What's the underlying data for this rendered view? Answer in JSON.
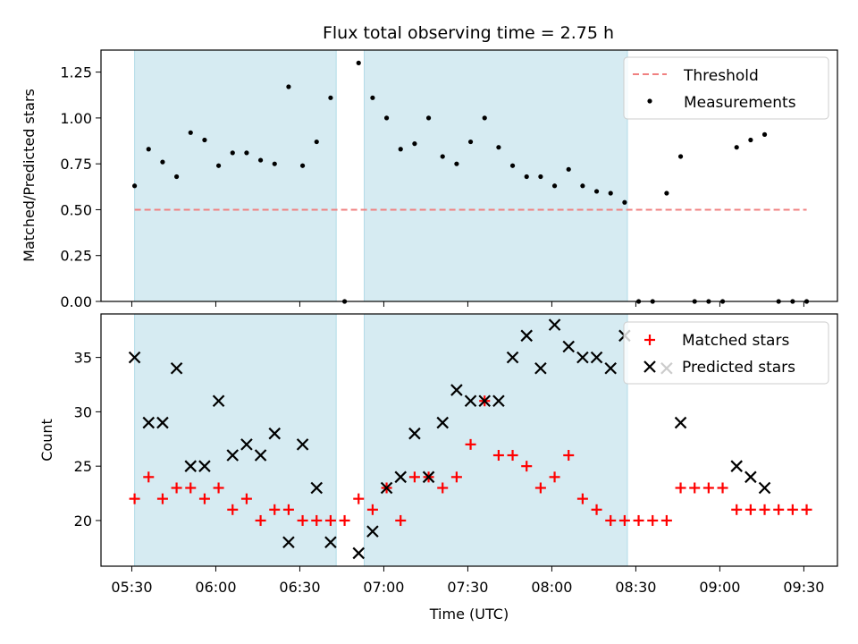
{
  "figure": {
    "title": "Flux total observing time = 2.75 h"
  },
  "chart_data": [
    {
      "type": "scatter",
      "panel": "top",
      "ylabel": "Matched/Predicted stars",
      "ylim": [
        0,
        1.37
      ],
      "yticks": [
        0.0,
        0.25,
        0.5,
        0.75,
        1.0,
        1.25
      ],
      "ytick_labels": [
        "0.00",
        "0.25",
        "0.50",
        "0.75",
        "1.00",
        "1.25"
      ],
      "grid": false,
      "legend": "top-right",
      "threshold": {
        "name": "Threshold",
        "value": 0.5,
        "x_start": "05:31",
        "x_end": "09:31",
        "color": "#f08080"
      },
      "series": [
        {
          "name": "Measurements",
          "color": "#000000",
          "x": [
            "05:31",
            "05:36",
            "05:41",
            "05:46",
            "05:51",
            "05:56",
            "06:01",
            "06:06",
            "06:11",
            "06:16",
            "06:21",
            "06:26",
            "06:31",
            "06:36",
            "06:41",
            "06:46",
            "06:51",
            "06:56",
            "07:01",
            "07:06",
            "07:11",
            "07:16",
            "07:21",
            "07:26",
            "07:31",
            "07:36",
            "07:41",
            "07:46",
            "07:51",
            "07:56",
            "08:01",
            "08:06",
            "08:11",
            "08:16",
            "08:21",
            "08:26",
            "08:31",
            "08:36",
            "08:41",
            "08:46",
            "08:51",
            "08:56",
            "09:01",
            "09:06",
            "09:11",
            "09:16",
            "09:21",
            "09:26",
            "09:31"
          ],
          "y": [
            0.63,
            0.83,
            0.76,
            0.68,
            0.92,
            0.88,
            0.74,
            0.81,
            0.81,
            0.77,
            0.75,
            1.17,
            0.74,
            0.87,
            1.11,
            0.0,
            1.3,
            1.11,
            1.0,
            0.83,
            0.86,
            1.0,
            0.79,
            0.75,
            0.87,
            1.0,
            0.84,
            0.74,
            0.68,
            0.68,
            0.63,
            0.72,
            0.63,
            0.6,
            0.59,
            0.54,
            0.0,
            0.0,
            0.59,
            0.79,
            0.0,
            0.0,
            0.0,
            0.84,
            0.88,
            0.91,
            0.0,
            0.0,
            0.0
          ]
        }
      ]
    },
    {
      "type": "scatter",
      "panel": "bottom",
      "xlabel": "Time (UTC)",
      "ylabel": "Count",
      "xlim": [
        "05:19",
        "09:42"
      ],
      "xticks": [
        "05:30",
        "06:00",
        "06:30",
        "07:00",
        "07:30",
        "08:00",
        "08:30",
        "09:00",
        "09:30"
      ],
      "ylim": [
        15.8,
        39
      ],
      "yticks": [
        20,
        25,
        30,
        35
      ],
      "ytick_labels": [
        "20",
        "25",
        "30",
        "35"
      ],
      "grid": false,
      "legend": "top-right",
      "series": [
        {
          "name": "Matched stars",
          "marker": "plus",
          "color": "#ff0000",
          "x": [
            "05:31",
            "05:36",
            "05:41",
            "05:46",
            "05:51",
            "05:56",
            "06:01",
            "06:06",
            "06:11",
            "06:16",
            "06:21",
            "06:26",
            "06:31",
            "06:36",
            "06:41",
            "06:46",
            "06:51",
            "06:56",
            "07:01",
            "07:06",
            "07:11",
            "07:16",
            "07:21",
            "07:26",
            "07:31",
            "07:36",
            "07:41",
            "07:46",
            "07:51",
            "07:56",
            "08:01",
            "08:06",
            "08:11",
            "08:16",
            "08:21",
            "08:26",
            "08:31",
            "08:36",
            "08:41",
            "08:46",
            "08:51",
            "08:56",
            "09:01",
            "09:06",
            "09:11",
            "09:16",
            "09:21",
            "09:26",
            "09:31"
          ],
          "y": [
            22,
            24,
            22,
            23,
            23,
            22,
            23,
            21,
            22,
            20,
            21,
            21,
            20,
            20,
            20,
            20,
            22,
            21,
            23,
            20,
            24,
            24,
            23,
            24,
            27,
            31,
            26,
            26,
            25,
            23,
            24,
            26,
            22,
            21,
            20,
            20,
            20,
            20,
            20,
            23,
            23,
            23,
            23,
            21,
            21,
            21,
            21,
            21,
            21
          ]
        },
        {
          "name": "Predicted stars",
          "marker": "x",
          "color": "#000000",
          "x": [
            "05:31",
            "05:36",
            "05:41",
            "05:46",
            "05:51",
            "05:56",
            "06:01",
            "06:06",
            "06:11",
            "06:16",
            "06:21",
            "06:26",
            "06:31",
            "06:36",
            "06:41",
            "06:56",
            "06:51",
            "07:01",
            "07:06",
            "07:11",
            "07:16",
            "07:21",
            "07:26",
            "07:31",
            "07:36",
            "07:41",
            "07:46",
            "07:51",
            "07:56",
            "08:01",
            "08:06",
            "08:11",
            "08:16",
            "08:21",
            "08:26",
            "08:41",
            "08:46",
            "09:06",
            "09:11",
            "09:16"
          ],
          "y": [
            35,
            29,
            29,
            34,
            25,
            25,
            31,
            26,
            27,
            26,
            28,
            18,
            27,
            23,
            18,
            19,
            17,
            23,
            24,
            28,
            24,
            29,
            32,
            31,
            31,
            31,
            35,
            37,
            34,
            38,
            36,
            35,
            35,
            34,
            37,
            34,
            29,
            25,
            24,
            23
          ]
        }
      ]
    }
  ],
  "shaded_intervals": [
    {
      "start": "05:31",
      "end": "06:43",
      "color": "#add8e6"
    },
    {
      "start": "06:53",
      "end": "08:27",
      "color": "#add8e6"
    }
  ]
}
